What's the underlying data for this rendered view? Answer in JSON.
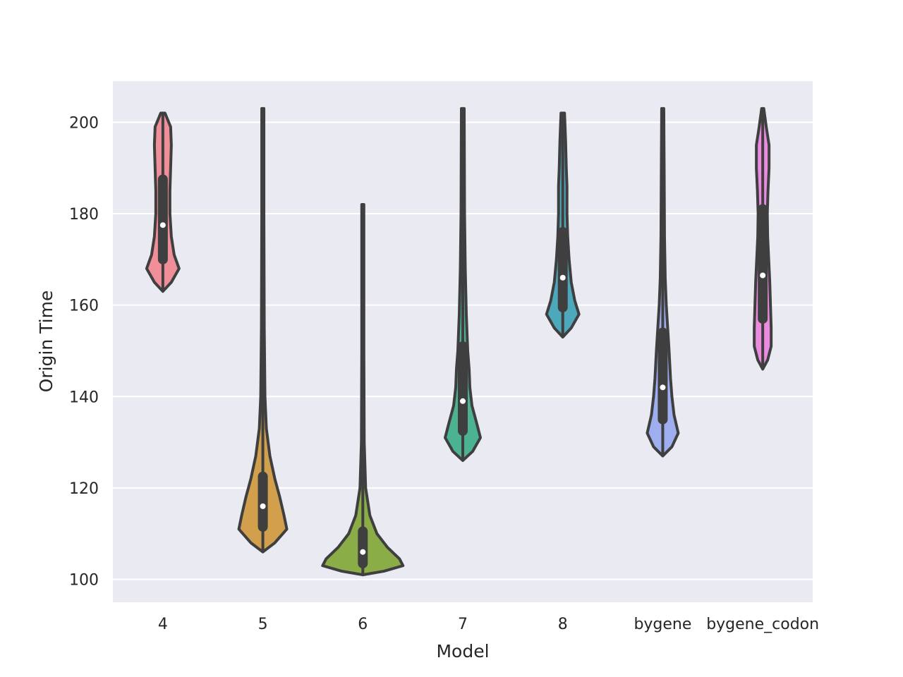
{
  "chart_data": {
    "type": "violin",
    "title": "",
    "xlabel": "Model",
    "ylabel": "Origin Time",
    "ylim": [
      95.0,
      209.0
    ],
    "yticks": [
      100,
      120,
      140,
      160,
      180,
      200
    ],
    "grid": true,
    "legend": "none",
    "categories": [
      "4",
      "5",
      "6",
      "7",
      "8",
      "bygene",
      "bygene_codon"
    ],
    "colors": [
      "#f08f99",
      "#d2a04c",
      "#8aad47",
      "#4cb392",
      "#4ea8bb",
      "#9eaeee",
      "#eb8be0"
    ],
    "series": [
      {
        "min": 163,
        "q1": 170,
        "median": 177.5,
        "q3": 187.5,
        "max": 202,
        "profile": [
          [
            163,
            0
          ],
          [
            165,
            12
          ],
          [
            168,
            23
          ],
          [
            171,
            16
          ],
          [
            175,
            12
          ],
          [
            180,
            10
          ],
          [
            185,
            10
          ],
          [
            190,
            11
          ],
          [
            195,
            12
          ],
          [
            199,
            11
          ],
          [
            202,
            3
          ]
        ]
      },
      {
        "min": 106,
        "q1": 111.5,
        "median": 116,
        "q3": 122.5,
        "max": 203,
        "profile": [
          [
            106,
            0
          ],
          [
            108,
            17
          ],
          [
            111,
            34
          ],
          [
            114,
            30
          ],
          [
            118,
            24
          ],
          [
            122,
            17
          ],
          [
            127,
            10
          ],
          [
            133,
            5
          ],
          [
            140,
            3
          ],
          [
            155,
            2
          ],
          [
            180,
            1.5
          ],
          [
            203,
            1.5
          ]
        ]
      },
      {
        "min": 101,
        "q1": 103.5,
        "median": 106,
        "q3": 110.5,
        "max": 182,
        "profile": [
          [
            101,
            0
          ],
          [
            101.8,
            30
          ],
          [
            103,
            57
          ],
          [
            104.5,
            52
          ],
          [
            107,
            35
          ],
          [
            110,
            20
          ],
          [
            114,
            10
          ],
          [
            120,
            4
          ],
          [
            130,
            2
          ],
          [
            150,
            1.5
          ],
          [
            182,
            1.5
          ]
        ]
      },
      {
        "min": 126,
        "q1": 132.5,
        "median": 139,
        "q3": 151,
        "max": 203,
        "profile": [
          [
            126,
            0
          ],
          [
            128,
            14
          ],
          [
            131,
            25
          ],
          [
            134,
            20
          ],
          [
            138,
            13
          ],
          [
            142,
            10
          ],
          [
            146,
            9
          ],
          [
            150,
            7
          ],
          [
            158,
            5
          ],
          [
            168,
            3.5
          ],
          [
            180,
            2.5
          ],
          [
            203,
            2
          ]
        ]
      },
      {
        "min": 153,
        "q1": 159.5,
        "median": 166,
        "q3": 176,
        "max": 202,
        "profile": [
          [
            153,
            0
          ],
          [
            155,
            12
          ],
          [
            158,
            23
          ],
          [
            161,
            17
          ],
          [
            165,
            12
          ],
          [
            170,
            9
          ],
          [
            175,
            7
          ],
          [
            180,
            6
          ],
          [
            186,
            6
          ],
          [
            190,
            5
          ],
          [
            196,
            4
          ],
          [
            202,
            2.5
          ]
        ]
      },
      {
        "min": 127,
        "q1": 135,
        "median": 142,
        "q3": 154,
        "max": 203,
        "profile": [
          [
            127,
            0
          ],
          [
            129,
            13
          ],
          [
            132,
            22
          ],
          [
            136,
            16
          ],
          [
            140,
            13
          ],
          [
            144,
            11
          ],
          [
            150,
            9
          ],
          [
            155,
            7
          ],
          [
            160,
            5
          ],
          [
            166,
            3.5
          ],
          [
            175,
            2.5
          ],
          [
            190,
            2
          ],
          [
            203,
            1.5
          ]
        ]
      },
      {
        "min": 146,
        "q1": 157,
        "median": 166.5,
        "q3": 181,
        "max": 203,
        "profile": [
          [
            146,
            0
          ],
          [
            148,
            7
          ],
          [
            151,
            12
          ],
          [
            155,
            12
          ],
          [
            160,
            11
          ],
          [
            165,
            10
          ],
          [
            170,
            8.5
          ],
          [
            175,
            7
          ],
          [
            180,
            6.5
          ],
          [
            185,
            7.5
          ],
          [
            190,
            9
          ],
          [
            195,
            9
          ],
          [
            199,
            5
          ],
          [
            203,
            1.5
          ]
        ]
      }
    ]
  }
}
